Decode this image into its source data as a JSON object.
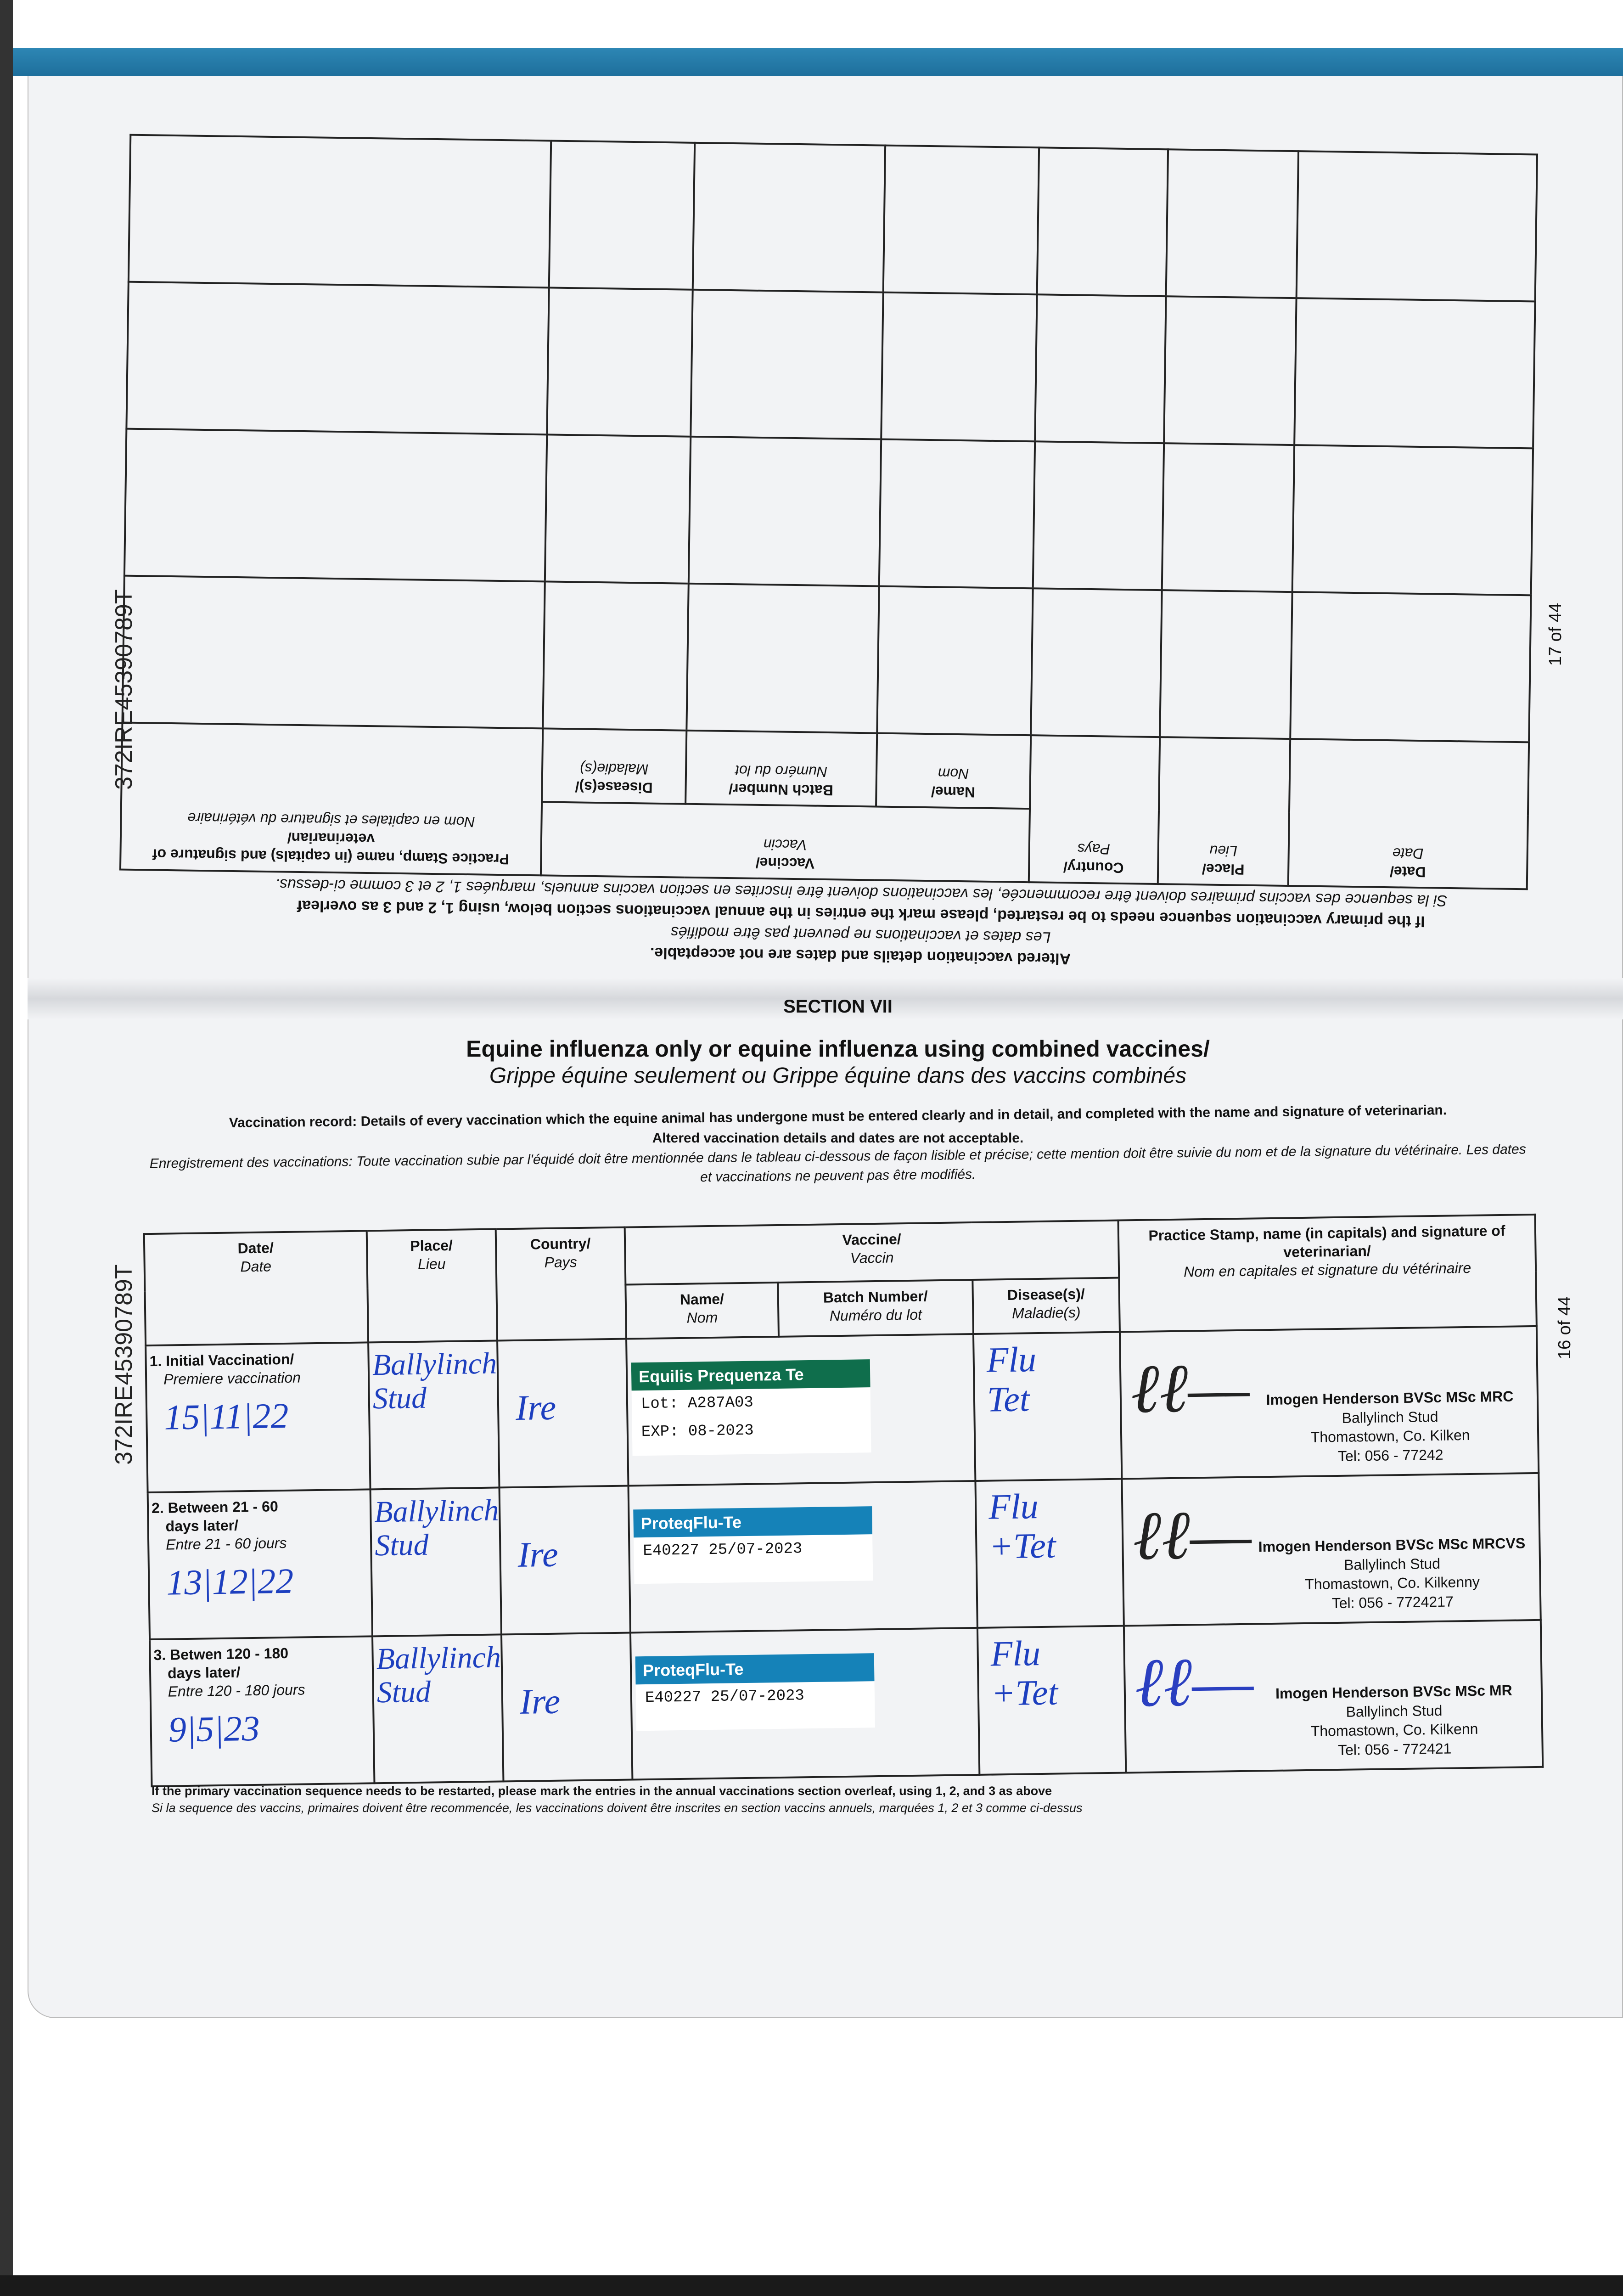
{
  "document_id": "372IRE45390789T",
  "page_upper": "17 of 44",
  "page_lower": "16 of 44",
  "upper": {
    "headers": {
      "date": "Date/",
      "date_fr": "Date",
      "place": "Place/",
      "place_fr": "Lieu",
      "country": "Country/",
      "country_fr": "Pays",
      "vaccine": "Vaccine/",
      "vaccine_fr": "Vaccin",
      "name": "Name/",
      "name_fr": "Nom",
      "batch": "Batch Number/",
      "batch_fr": "Numéro du lot",
      "disease": "Disease(s)/",
      "disease_fr": "Maladie(s)",
      "stamp": "Practice Stamp, name (in capitals) and signature of veterinarian/",
      "stamp_fr": "Nom en capitales et signature du vétérinaire"
    },
    "note1": "Altered vaccination details and dates are not acceptable.",
    "note1_fr": "Les dates et vaccinations ne peuvent pas être modifiés",
    "note2": "If the primary vaccination sequence needs to be restarted, please mark the entries in the annual vaccinations section below, using 1, 2 and 3 as overleaf",
    "note2_fr": "Si la sequence des vaccins primaires doivent être recommencée, les vaccinations doivent être inscrites en section vaccins annuels, marquées 1, 2 et 3 comme ci-dessus."
  },
  "section": {
    "label": "SECTION VII",
    "title": "Equine influenza only or equine influenza using combined vaccines/",
    "subtitle": "Grippe équine seulement ou Grippe équine dans des vaccins combinés",
    "record": "Vaccination record: Details of every vaccination which the equine animal has undergone must be entered clearly and in detail, and completed with the name and signature of veterinarian.",
    "altered": "Altered vaccination details and dates are not acceptable.",
    "record_fr": "Enregistrement des vaccinations: Toute vaccination subie par l'équidé doit être mentionnée dans le tableau ci-dessous de façon lisible et précise; cette mention doit être suivie du nom et de la signature du vétérinaire. Les dates et vaccinations ne peuvent pas être modifiés."
  },
  "table": {
    "headers": {
      "date": "Date/",
      "date_fr": "Date",
      "place": "Place/",
      "place_fr": "Lieu",
      "country": "Country/",
      "country_fr": "Pays",
      "vaccine": "Vaccine/",
      "vaccine_fr": "Vaccin",
      "name": "Name/",
      "name_fr": "Nom",
      "batch": "Batch Number/",
      "batch_fr": "Numéro du lot",
      "disease": "Disease(s)/",
      "disease_fr": "Maladie(s)",
      "stamp": "Practice Stamp, name (in capitals) and signature of veterinarian/",
      "stamp_fr": "Nom en capitales et signature du vétérinaire"
    },
    "rows": [
      {
        "label": "1. Initial Vaccination/",
        "label2": "",
        "label_fr": "Premiere vaccination",
        "date": "15|11|22",
        "place": "Ballylinch Stud",
        "country": "Ire",
        "sticker_brand": "Equilis Prequenza Te",
        "sticker_color": "#0f6e4c",
        "sticker_line1": "Lot: A287A03",
        "sticker_line2": "EXP: 08-2023",
        "disease": "Flu Tet",
        "stamp_name": "Imogen Henderson BVSc MSc MRC",
        "stamp_place": "Ballylinch Stud",
        "stamp_addr": "Thomastown, Co. Kilken",
        "stamp_tel": "Tel: 056 - 77242",
        "sig_color": "#222222"
      },
      {
        "label": "2. Between 21 - 60",
        "label2": "days later/",
        "label_fr": "Entre 21 - 60 jours",
        "date": "13|12|22",
        "place": "Ballylinch Stud",
        "country": "Ire",
        "sticker_brand": "ProteqFlu-Te",
        "sticker_color": "#1582b8",
        "sticker_line1": "E40227   25/07-2023",
        "sticker_line2": "",
        "disease": "Flu +Tet",
        "stamp_name": "Imogen Henderson BVSc MSc MRCVS",
        "stamp_place": "Ballylinch Stud",
        "stamp_addr": "Thomastown, Co. Kilkenny",
        "stamp_tel": "Tel: 056 - 7724217",
        "sig_color": "#222222"
      },
      {
        "label": "3. Betwen 120 - 180",
        "label2": "days later/",
        "label_fr": "Entre 120 - 180 jours",
        "date": "9|5|23",
        "place": "Ballylinch Stud",
        "country": "Ire",
        "sticker_brand": "ProteqFlu-Te",
        "sticker_color": "#1582b8",
        "sticker_line1": "E40227   25/07-2023",
        "sticker_line2": "",
        "disease": "Flu +Tet",
        "stamp_name": "Imogen Henderson BVSc MSc MR",
        "stamp_place": "Ballylinch Stud",
        "stamp_addr": "Thomastown, Co. Kilkenn",
        "stamp_tel": "Tel: 056 - 772421",
        "sig_color": "#2a3fc0"
      }
    ]
  },
  "footnote": "If the primary vaccination sequence needs to be restarted, please mark the entries in the annual vaccinations section overleaf, using 1, 2, and 3 as above",
  "footnote_fr": "Si la sequence des vaccins, primaires doivent être recommencée, les vaccinations doivent être inscrites en section vaccins annuels, marquées 1, 2 et 3 comme ci-dessus",
  "colors": {
    "band": "#1e6f9c",
    "handwriting": "#1d3fbf"
  }
}
